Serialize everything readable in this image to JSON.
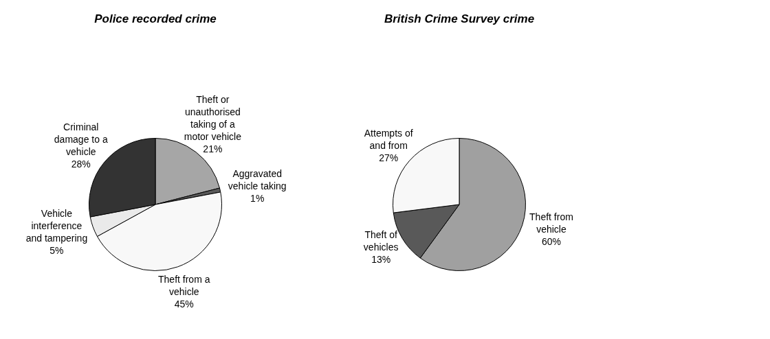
{
  "chart_data": [
    {
      "type": "pie",
      "title": "Police recorded crime",
      "categories": [
        "Theft or unauthorised taking of a motor vehicle",
        "Aggravated vehicle taking",
        "Theft from a vehicle",
        "Vehicle interference and tampering",
        "Criminal damage to a vehicle"
      ],
      "values": [
        21,
        1,
        45,
        5,
        28
      ],
      "value_labels": [
        "21%",
        "1%",
        "45%",
        "5%",
        "28%"
      ],
      "colors": [
        "#a6a6a6",
        "#595959",
        "#f8f8f8",
        "#eaeaea",
        "#333333"
      ]
    },
    {
      "type": "pie",
      "title": "British Crime Survey crime",
      "categories": [
        "Theft from vehicle",
        "Theft of vehicles",
        "Attempts of and from"
      ],
      "values": [
        60,
        13,
        27
      ],
      "value_labels": [
        "60%",
        "13%",
        "27%"
      ],
      "colors": [
        "#a0a0a0",
        "#595959",
        "#f8f8f8"
      ]
    }
  ]
}
